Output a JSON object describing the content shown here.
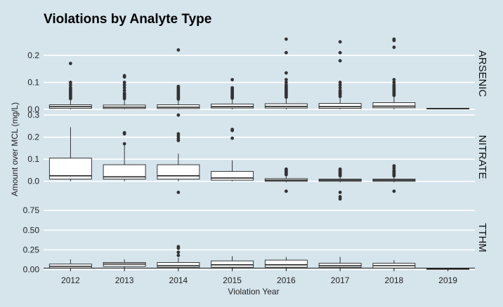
{
  "chart_data": {
    "type": "boxplot",
    "title": "Violations by Analyte Type",
    "xlabel": "Violation Year",
    "ylabel": "Amount over MCL (mg/L)",
    "categories": [
      "2012",
      "2013",
      "2014",
      "2015",
      "2016",
      "2017",
      "2018",
      "2019"
    ],
    "grid": true,
    "facets": [
      {
        "name": "ARSENIC",
        "ylim": [
          -0.005,
          0.27
        ],
        "yticks": [
          0.0,
          0.1,
          0.2
        ],
        "tick_labels": [
          "0.0",
          "0.1",
          "0.2"
        ],
        "boxes": [
          {
            "x": "2012",
            "min": 0.0,
            "q1": 0.004,
            "median": 0.01,
            "q3": 0.017,
            "max": 0.035,
            "outliers": [
              0.04,
              0.045,
              0.05,
              0.055,
              0.06,
              0.065,
              0.07,
              0.075,
              0.08,
              0.09,
              0.1,
              0.17
            ]
          },
          {
            "x": "2013",
            "min": 0.0,
            "q1": 0.003,
            "median": 0.008,
            "q3": 0.016,
            "max": 0.035,
            "outliers": [
              0.04,
              0.045,
              0.05,
              0.055,
              0.06,
              0.07,
              0.08,
              0.09,
              0.1,
              0.12,
              0.125
            ]
          },
          {
            "x": "2014",
            "min": 0.0,
            "q1": 0.003,
            "median": 0.008,
            "q3": 0.017,
            "max": 0.033,
            "outliers": [
              0.038,
              0.042,
              0.046,
              0.05,
              0.055,
              0.06,
              0.065,
              0.07,
              0.075,
              0.08,
              0.085,
              0.22
            ]
          },
          {
            "x": "2015",
            "min": 0.0,
            "q1": 0.005,
            "median": 0.01,
            "q3": 0.02,
            "max": 0.038,
            "outliers": [
              0.042,
              0.046,
              0.05,
              0.055,
              0.06,
              0.065,
              0.07,
              0.075,
              0.08,
              0.11
            ]
          },
          {
            "x": "2016",
            "min": 0.0,
            "q1": 0.005,
            "median": 0.011,
            "q3": 0.021,
            "max": 0.04,
            "outliers": [
              0.045,
              0.05,
              0.055,
              0.06,
              0.065,
              0.07,
              0.075,
              0.08,
              0.085,
              0.09,
              0.1,
              0.11,
              0.135,
              0.21,
              0.26
            ]
          },
          {
            "x": "2017",
            "min": 0.0,
            "q1": 0.004,
            "median": 0.01,
            "q3": 0.022,
            "max": 0.043,
            "outliers": [
              0.048,
              0.055,
              0.06,
              0.065,
              0.07,
              0.08,
              0.09,
              0.1,
              0.18,
              0.21,
              0.25
            ]
          },
          {
            "x": "2018",
            "min": 0.0,
            "q1": 0.006,
            "median": 0.012,
            "q3": 0.025,
            "max": 0.048,
            "outliers": [
              0.052,
              0.056,
              0.06,
              0.065,
              0.07,
              0.075,
              0.08,
              0.085,
              0.09,
              0.1,
              0.11,
              0.23,
              0.255,
              0.26
            ]
          },
          {
            "x": "2019",
            "min": 0.002,
            "q1": 0.002,
            "median": 0.003,
            "q3": 0.004,
            "max": 0.004,
            "outliers": []
          }
        ]
      },
      {
        "name": "NITRATE",
        "ylim": [
          -0.09,
          0.31
        ],
        "yticks": [
          0.0,
          0.1,
          0.2,
          0.3
        ],
        "tick_labels": [
          "0.0",
          "0.1",
          "0.2",
          "0.3"
        ],
        "boxes": [
          {
            "x": "2012",
            "min": 0.0,
            "q1": 0.01,
            "median": 0.025,
            "q3": 0.105,
            "max": 0.245,
            "outliers": []
          },
          {
            "x": "2013",
            "min": 0.0,
            "q1": 0.01,
            "median": 0.02,
            "q3": 0.075,
            "max": 0.165,
            "outliers": [
              0.17,
              0.215,
              0.22
            ]
          },
          {
            "x": "2014",
            "min": 0.0,
            "q1": 0.01,
            "median": 0.025,
            "q3": 0.075,
            "max": 0.125,
            "outliers": [
              0.185,
              0.195,
              0.205,
              0.215,
              0.3,
              -0.05
            ]
          },
          {
            "x": "2015",
            "min": 0.0,
            "q1": 0.005,
            "median": 0.015,
            "q3": 0.045,
            "max": 0.095,
            "outliers": [
              0.195,
              0.23,
              0.235
            ]
          },
          {
            "x": "2016",
            "min": -0.005,
            "q1": 0.0,
            "median": 0.005,
            "q3": 0.012,
            "max": 0.025,
            "outliers": [
              0.03,
              0.035,
              0.04,
              0.045,
              0.05,
              0.055,
              -0.045
            ]
          },
          {
            "x": "2017",
            "min": -0.005,
            "q1": 0.0,
            "median": 0.005,
            "q3": 0.01,
            "max": 0.02,
            "outliers": [
              0.025,
              0.03,
              0.035,
              0.04,
              0.045,
              0.05,
              0.055,
              -0.05,
              -0.07,
              -0.08
            ]
          },
          {
            "x": "2018",
            "min": -0.005,
            "q1": 0.0,
            "median": 0.005,
            "q3": 0.01,
            "max": 0.02,
            "outliers": [
              0.025,
              0.03,
              0.035,
              0.04,
              0.045,
              0.05,
              0.06,
              0.07,
              -0.045
            ]
          }
        ]
      },
      {
        "name": "TTHM",
        "ylim": [
          -0.03,
          0.84
        ],
        "yticks": [
          0.0,
          0.25,
          0.5,
          0.75
        ],
        "tick_labels": [
          "0.00",
          "0.25",
          "0.50",
          "0.75"
        ],
        "boxes": [
          {
            "x": "2012",
            "min": 0.0,
            "q1": 0.02,
            "median": 0.04,
            "q3": 0.07,
            "max": 0.13,
            "outliers": []
          },
          {
            "x": "2013",
            "min": 0.0,
            "q1": 0.04,
            "median": 0.07,
            "q3": 0.09,
            "max": 0.13,
            "outliers": []
          },
          {
            "x": "2014",
            "min": 0.0,
            "q1": 0.03,
            "median": 0.05,
            "q3": 0.09,
            "max": 0.15,
            "outliers": [
              0.18,
              0.22,
              0.27,
              0.29
            ]
          },
          {
            "x": "2015",
            "min": 0.0,
            "q1": 0.03,
            "median": 0.06,
            "q3": 0.11,
            "max": 0.17,
            "outliers": []
          },
          {
            "x": "2016",
            "min": 0.0,
            "q1": 0.03,
            "median": 0.06,
            "q3": 0.12,
            "max": 0.16,
            "outliers": []
          },
          {
            "x": "2017",
            "min": 0.0,
            "q1": 0.03,
            "median": 0.05,
            "q3": 0.08,
            "max": 0.16,
            "outliers": []
          },
          {
            "x": "2018",
            "min": 0.0,
            "q1": 0.02,
            "median": 0.05,
            "q3": 0.08,
            "max": 0.12,
            "outliers": []
          },
          {
            "x": "2019",
            "min": 0.01,
            "q1": 0.01,
            "median": 0.01,
            "q3": 0.01,
            "max": 0.01,
            "outliers": []
          }
        ]
      }
    ]
  }
}
